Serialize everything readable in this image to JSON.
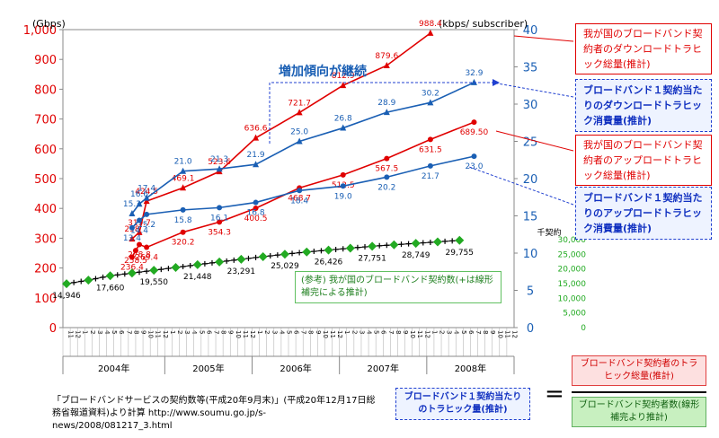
{
  "chart_data": {
    "type": "line",
    "left_unit": "(Gbps)",
    "right_unit": "(kbps/ subscriber)",
    "subs_unit": "千契約",
    "left_ticks": [
      "0",
      "100",
      "200",
      "300",
      "400",
      "500",
      "600",
      "700",
      "800",
      "900",
      "1,000"
    ],
    "right_ticks": [
      "0",
      "5",
      "10",
      "15",
      "20",
      "25",
      "30",
      "35",
      "40"
    ],
    "subs_ticks": [
      "0",
      "5,000",
      "10,000",
      "15,000",
      "20,000",
      "25,000",
      "30,000"
    ],
    "left_ylim": [
      0,
      1000
    ],
    "right_ylim": [
      0,
      40
    ],
    "month_ticks": [
      "11",
      "12",
      "1",
      "2",
      "3",
      "4",
      "5",
      "6",
      "7",
      "8",
      "9",
      "10",
      "11",
      "12",
      "1",
      "2",
      "3",
      "4",
      "5",
      "6",
      "7",
      "8",
      "9",
      "10",
      "11",
      "12",
      "1",
      "2",
      "3",
      "4",
      "5",
      "6",
      "7",
      "8",
      "9",
      "10",
      "11",
      "12",
      "1",
      "2",
      "3",
      "4",
      "5",
      "6",
      "7",
      "8",
      "9",
      "10",
      "11",
      "12",
      "1",
      "2",
      "3",
      "4",
      "5",
      "6",
      "7",
      "8",
      "9",
      "10",
      "11",
      "12"
    ],
    "years": [
      {
        "label": "2004年",
        "start": 0,
        "end": 13
      },
      {
        "label": "2005年",
        "start": 14,
        "end": 25
      },
      {
        "label": "2006年",
        "start": 26,
        "end": 37
      },
      {
        "label": "2007年",
        "start": 38,
        "end": 49
      },
      {
        "label": "2008年",
        "start": 50,
        "end": 61
      }
    ],
    "series": [
      {
        "key": "red_down",
        "axis": "left",
        "color": "#e00000",
        "marker": "triangle",
        "points": [
          [
            9,
            298
          ],
          [
            10,
            319.7
          ],
          [
            11,
            424.5
          ],
          [
            16,
            469.1
          ],
          [
            21,
            523.6
          ],
          [
            26,
            636.6
          ],
          [
            32,
            721.7
          ],
          [
            38,
            812.9
          ],
          [
            44,
            879.6
          ],
          [
            50,
            988.4
          ]
        ],
        "labels": [
          "298",
          "319.7",
          "424.5",
          "469.1",
          "523.6",
          "636.6",
          "721.7",
          "812.9",
          "879.6",
          "988.4"
        ]
      },
      {
        "key": "red_up",
        "axis": "left",
        "color": "#e00000",
        "marker": "circle",
        "points": [
          [
            9,
            236.4
          ],
          [
            9.5,
            258.5
          ],
          [
            10,
            278.8
          ],
          [
            11,
            269.4
          ],
          [
            16,
            320.2
          ],
          [
            21,
            354.3
          ],
          [
            26,
            400.5
          ],
          [
            32,
            468.7
          ],
          [
            38,
            512.5
          ],
          [
            44,
            567.5
          ],
          [
            50,
            631.5
          ],
          [
            56,
            689.5
          ]
        ],
        "labels": [
          "236.4",
          "258.5",
          "278.8",
          "269.4",
          "320.2",
          "354.3",
          "400.5",
          "468.7",
          "512.5",
          "567.5",
          "631.5",
          "689.50"
        ]
      },
      {
        "key": "blue_down",
        "axis": "right",
        "color": "#1a5fb4",
        "marker": "triangle",
        "points": [
          [
            9,
            15.3
          ],
          [
            10,
            16.6
          ],
          [
            11,
            17.4
          ],
          [
            16,
            21.0
          ],
          [
            21,
            21.3
          ],
          [
            26,
            21.9
          ],
          [
            32,
            25.0
          ],
          [
            38,
            26.8
          ],
          [
            44,
            28.9
          ],
          [
            50,
            30.2
          ],
          [
            56,
            32.9
          ]
        ],
        "labels": [
          "15.3",
          "16.6",
          "17.4",
          "21.0",
          "21.3",
          "21.9",
          "25.0",
          "26.8",
          "28.9",
          "30.2",
          "32.9"
        ]
      },
      {
        "key": "blue_up",
        "axis": "right",
        "color": "#1a5fb4",
        "marker": "circle",
        "points": [
          [
            9,
            13.4
          ],
          [
            10,
            14.4
          ],
          [
            11,
            15.2
          ],
          [
            16,
            15.8
          ],
          [
            21,
            16.1
          ],
          [
            26,
            16.8
          ],
          [
            32,
            18.4
          ],
          [
            38,
            19.0
          ],
          [
            44,
            20.2
          ],
          [
            50,
            21.7
          ],
          [
            56,
            23.0
          ]
        ],
        "labels": [
          "13.4",
          "14.4",
          "15.2",
          "15.8",
          "16.1",
          "16.8",
          "18.4",
          "19.0",
          "20.2",
          "21.7",
          "23.0"
        ]
      },
      {
        "key": "subs",
        "axis": "subs",
        "color": "#22aa22",
        "marker": "diamond",
        "points": [
          [
            0,
            14946
          ],
          [
            3,
            16200
          ],
          [
            6,
            17660
          ],
          [
            9,
            18600
          ],
          [
            12,
            19550
          ],
          [
            15,
            20500
          ],
          [
            18,
            21448
          ],
          [
            21,
            22400
          ],
          [
            24,
            23291
          ],
          [
            27,
            24200
          ],
          [
            30,
            25029
          ],
          [
            33,
            25800
          ],
          [
            36,
            26426
          ],
          [
            39,
            27100
          ],
          [
            42,
            27751
          ],
          [
            45,
            28250
          ],
          [
            48,
            28749
          ],
          [
            51,
            29250
          ],
          [
            54,
            29755
          ]
        ],
        "labels": [
          "14,946",
          "",
          "17,660",
          "",
          "19,550",
          "",
          "21,448",
          "",
          "23,291",
          "",
          "25,029",
          "",
          "26,426",
          "",
          "27,751",
          "",
          "28,749",
          "",
          "29,755"
        ]
      }
    ]
  },
  "annotations": {
    "trend": "増加傾向が継続",
    "ref_note": "(参考) 我が国のブロードバンド契約数(+は線形補完による推計)"
  },
  "legend": {
    "red_down": "我が国のブロードバンド契約者のダウンロードトラヒック総量(推計)",
    "blue_down": "ブロードバンド１契約当たりのダウンロードトラヒック消費量(推計)",
    "red_up": "我が国のブロードバンド契約者のアップロードトラヒック総量(推計)",
    "blue_up": "ブロードバンド１契約当たりのアップロードトラヒック消費量(推計)"
  },
  "formula": {
    "lhs": "ブロードバンド１契約当たりのトラヒック量(推計)",
    "equals": "=",
    "numerator": "ブロードバンド契約者のトラヒック総量(推計)",
    "denominator": "ブロードバンド契約者数(線形補完より推計)"
  },
  "source": "「ブロードバンドサービスの契約数等(平成20年9月末)」(平成20年12月17日総務省報道資料)より計算 http://www.soumu.go.jp/s-news/2008/081217_3.html"
}
